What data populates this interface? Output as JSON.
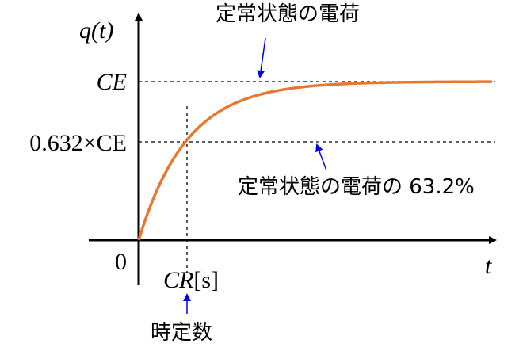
{
  "axes": {
    "y_label": "q(t)",
    "x_label": "t",
    "origin": "0"
  },
  "levels": {
    "steady": "CE",
    "fraction": "0.632×CE"
  },
  "time_constant": {
    "symbol": "CR",
    "unit": "[s]"
  },
  "annotations": {
    "steady_state": "定常状態の電荷",
    "fraction_state": "定常状態の電荷の 63.2%",
    "time_constant": "時定数"
  }
}
